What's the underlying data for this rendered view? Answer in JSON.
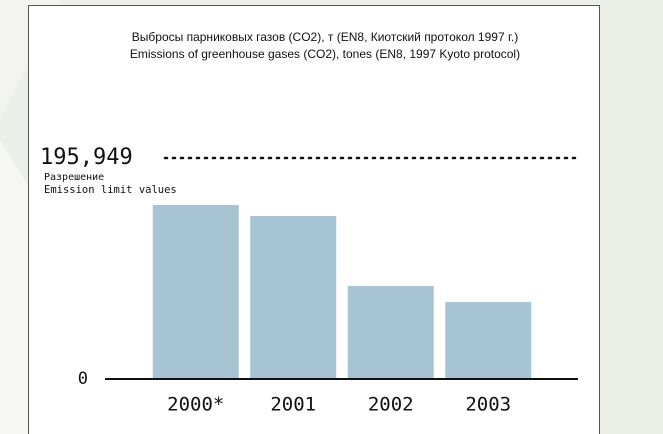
{
  "chart_data": {
    "type": "bar",
    "title": "Выбросы парниковых газов (CO2), т (EN8, Киотский протокол 1997 г.)",
    "subtitle": "Emissions of greenhouse gases (CO2), tones (EN8, 1997 Kyoto protocol)",
    "categories": [
      "2000*",
      "2001",
      "2002",
      "2003"
    ],
    "values": [
      154300,
      144500,
      82500,
      68300
    ],
    "color": "#a6c4d4",
    "ylim": [
      0,
      195949
    ],
    "yticks": [
      0,
      {
        "value": 195949,
        "label": "195,949"
      }
    ],
    "annotations": [
      "Разрешение",
      "Emission limit values"
    ]
  }
}
